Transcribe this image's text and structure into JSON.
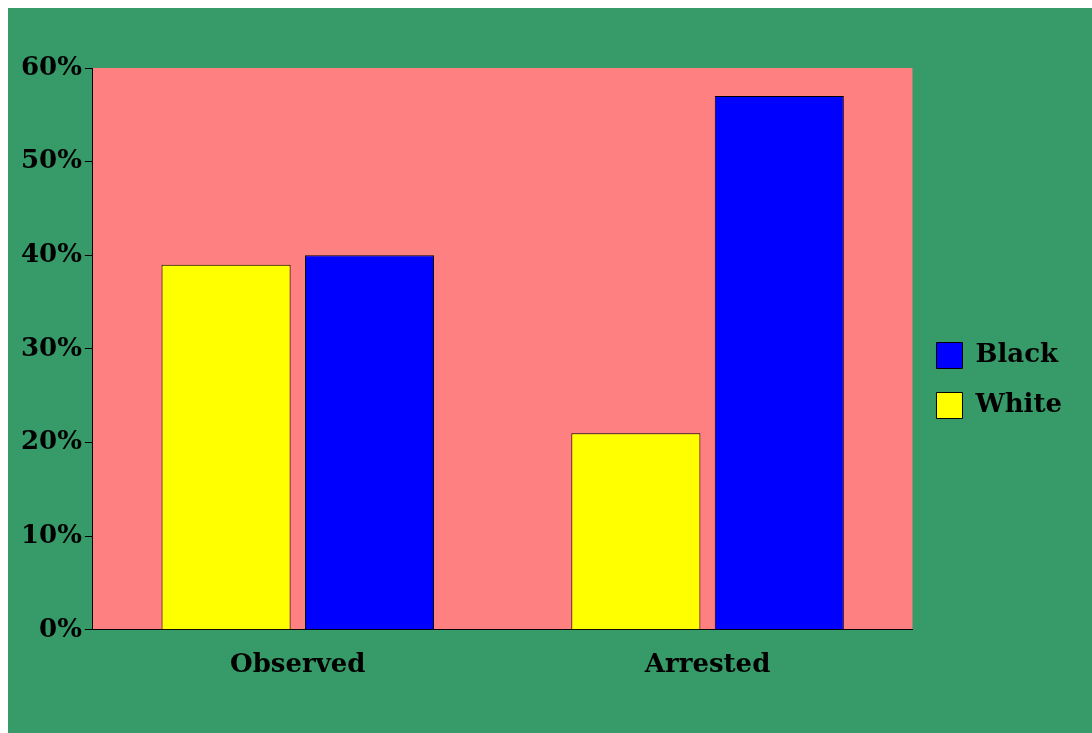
{
  "chart_data": {
    "type": "bar",
    "categories": [
      "Observed",
      "Arrested"
    ],
    "series": [
      {
        "name": "Black",
        "color": "#0000ff",
        "values": [
          40,
          57
        ]
      },
      {
        "name": "White",
        "color": "#ffff00",
        "values": [
          39,
          21
        ]
      }
    ],
    "ylim": [
      0,
      60
    ],
    "yticks": [
      {
        "value": 0,
        "label": "0%"
      },
      {
        "value": 10,
        "label": "10%"
      },
      {
        "value": 20,
        "label": "20%"
      },
      {
        "value": 30,
        "label": "30%"
      },
      {
        "value": 40,
        "label": "40%"
      },
      {
        "value": 50,
        "label": "50%"
      },
      {
        "value": 60,
        "label": "60%"
      }
    ],
    "grid": false,
    "legend": "right"
  }
}
